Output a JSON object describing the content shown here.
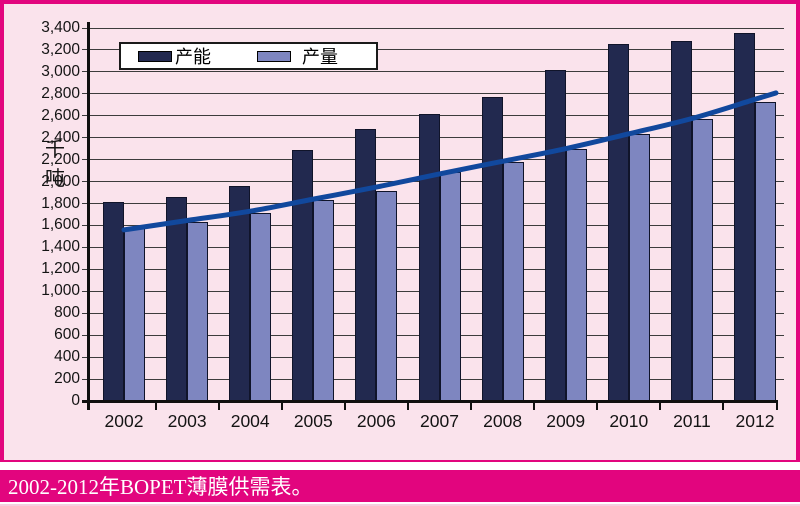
{
  "chart": {
    "y_axis_unit": "千吨",
    "caption": "2002-2012年BOPET薄膜供需表。"
  },
  "colors": {
    "frame_magenta": "#e2057e",
    "plot_background": "#fae3ec",
    "capacity_bar": "#22294f",
    "output_bar": "#7e86c0",
    "trend_line": "#11489d",
    "gridline": "#3c3c3c",
    "caption_text": "#ffffff"
  },
  "chart_data": {
    "type": "bar",
    "title": "",
    "xlabel": "",
    "ylabel": "千吨",
    "ylim": [
      0,
      3400
    ],
    "ytick_step": 200,
    "ytick_labels": [
      "0",
      "200",
      "400",
      "600",
      "800",
      "1,000",
      "1,200",
      "1,400",
      "1,600",
      "1,800",
      "2,000",
      "2,200",
      "2,400",
      "2,600",
      "2,800",
      "3,000",
      "3,200",
      "3,400"
    ],
    "grid": true,
    "legend_position": "top-left",
    "categories": [
      "2002",
      "2003",
      "2004",
      "2005",
      "2006",
      "2007",
      "2008",
      "2009",
      "2010",
      "2011",
      "2012"
    ],
    "series": [
      {
        "name": "产能",
        "type": "bar",
        "color": "#22294f",
        "values": [
          1810,
          1860,
          1960,
          2290,
          2480,
          2620,
          2770,
          3020,
          3250,
          3280,
          3350
        ]
      },
      {
        "name": "产量",
        "type": "bar",
        "color": "#7e86c0",
        "values": [
          1580,
          1630,
          1710,
          1830,
          1910,
          2090,
          2180,
          2300,
          2430,
          2570,
          2730
        ]
      },
      {
        "name": "trend-line",
        "type": "line",
        "color": "#11489d",
        "values": [
          1560,
          1645,
          1730,
          1840,
          1950,
          2070,
          2185,
          2300,
          2435,
          2575,
          2750
        ]
      }
    ]
  }
}
